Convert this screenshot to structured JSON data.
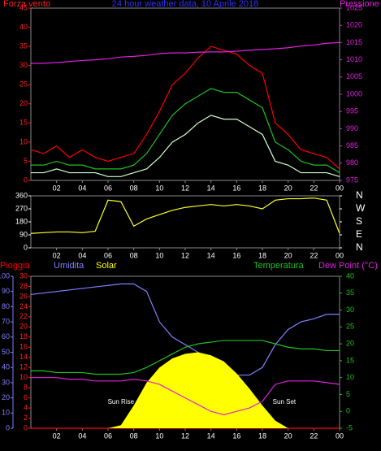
{
  "chart_data": [
    {
      "type": "line",
      "title": "24 hour weather data, 10 Aprile 2018",
      "ylabel": "Forza vento",
      "y2label": "Pressione",
      "xlim": [
        0,
        24
      ],
      "xticks": [
        {
          "value": 2,
          "label": "02"
        },
        {
          "value": 4,
          "label": "04"
        },
        {
          "value": 6,
          "label": "06"
        },
        {
          "value": 8,
          "label": "08"
        },
        10,
        12,
        14,
        16,
        18,
        20,
        22,
        {
          "value": 24,
          "label": "00"
        }
      ],
      "ylim": [
        0,
        45
      ],
      "yticks": [
        0,
        5,
        10,
        15,
        20,
        25,
        30,
        35,
        40,
        45
      ],
      "ycolor": "#ff2020",
      "y2lim": [
        975,
        1025
      ],
      "y2ticks": [
        975,
        980,
        985,
        990,
        995,
        1000,
        1005,
        1010,
        1015,
        1020,
        1025
      ],
      "y2color": "#e020e0",
      "x": [
        0,
        1,
        2,
        3,
        4,
        5,
        6,
        7,
        8,
        9,
        10,
        11,
        12,
        13,
        14,
        15,
        16,
        17,
        18,
        19,
        20,
        21,
        22,
        23,
        24
      ],
      "series": [
        {
          "color": "#ff0000",
          "values": [
            8,
            7,
            9,
            6,
            8,
            6,
            5,
            6,
            7,
            12,
            18,
            25,
            28,
            32,
            35,
            34,
            33,
            30,
            28,
            15,
            12,
            8,
            7,
            6,
            3
          ]
        },
        {
          "color": "#20c020",
          "values": [
            4,
            4,
            5,
            4,
            4,
            3,
            3,
            3,
            4,
            7,
            12,
            17,
            20,
            22,
            24,
            23,
            23,
            21,
            19,
            10,
            8,
            5,
            4,
            4,
            2
          ]
        },
        {
          "color": "#d0ffd0",
          "values": [
            2,
            2,
            3,
            2,
            2,
            2,
            1,
            1,
            2,
            3,
            6,
            10,
            12,
            15,
            17,
            16,
            16,
            14,
            12,
            5,
            4,
            2,
            2,
            2,
            1
          ]
        },
        {
          "color": "#e020e0",
          "axis": "y2",
          "values": [
            1009,
            1009,
            1009.2,
            1009.5,
            1009.8,
            1010,
            1010.3,
            1010.8,
            1011,
            1011.3,
            1011.8,
            1012,
            1012,
            1012.2,
            1012.3,
            1012.3,
            1012.5,
            1012.8,
            1013,
            1013.2,
            1013.5,
            1014,
            1014.3,
            1014.8,
            1015
          ]
        }
      ]
    },
    {
      "type": "line",
      "xlim": [
        0,
        24
      ],
      "xticks": [
        {
          "value": 2,
          "label": "02"
        },
        {
          "value": 4,
          "label": "04"
        },
        {
          "value": 6,
          "label": "06"
        },
        {
          "value": 8,
          "label": "08"
        },
        10,
        12,
        14,
        16,
        18,
        20,
        22,
        {
          "value": 24,
          "label": "00"
        }
      ],
      "ylim": [
        0,
        360
      ],
      "yticks": [
        0,
        90,
        180,
        270,
        360
      ],
      "ycolor": "#ffffff",
      "y2lim": [
        0,
        360
      ],
      "y2ticks": [
        {
          "value": 0,
          "label": "N"
        },
        {
          "value": 90,
          "label": "E"
        },
        {
          "value": 180,
          "label": "S"
        },
        {
          "value": 270,
          "label": "W"
        },
        {
          "value": 360,
          "label": "N"
        }
      ],
      "y2color": "#ffffff",
      "x": [
        0,
        1,
        2,
        3,
        4,
        5,
        6,
        7,
        8,
        9,
        10,
        11,
        12,
        13,
        14,
        15,
        16,
        17,
        18,
        19,
        20,
        21,
        22,
        23,
        24
      ],
      "series": [
        {
          "color": "#ffff20",
          "values": [
            100,
            105,
            110,
            110,
            105,
            115,
            330,
            320,
            150,
            200,
            230,
            260,
            280,
            290,
            300,
            290,
            300,
            290,
            270,
            330,
            340,
            340,
            345,
            330,
            100
          ]
        }
      ]
    },
    {
      "type": "line",
      "xlim": [
        0,
        24
      ],
      "xticks": [
        {
          "value": 2,
          "label": "02"
        },
        {
          "value": 4,
          "label": "04"
        },
        {
          "value": 6,
          "label": "06"
        },
        {
          "value": 8,
          "label": "08"
        },
        10,
        12,
        14,
        16,
        18,
        20,
        22,
        {
          "value": 24,
          "label": "00"
        }
      ],
      "ylim": [
        0,
        100
      ],
      "yticks": [
        0,
        10,
        20,
        30,
        40,
        50,
        60,
        70,
        80,
        90,
        100
      ],
      "ycolor": "#8080ff",
      "y3lim": [
        0,
        30
      ],
      "y3ticks": [
        0,
        2,
        4,
        6,
        8,
        10,
        12,
        14,
        16,
        18,
        20,
        22,
        24,
        26,
        28,
        30
      ],
      "y3color": "#ff2020",
      "y2lim": [
        -5,
        40
      ],
      "y2ticks": [
        -5,
        0,
        5,
        10,
        15,
        20,
        25,
        30,
        35,
        40
      ],
      "y2color": "#20c020",
      "annotations": [
        {
          "text": "Sun Rise",
          "x": 7
        },
        {
          "text": "Sun Set",
          "x": 19.7
        }
      ],
      "x": [
        0,
        1,
        2,
        3,
        4,
        5,
        6,
        7,
        8,
        9,
        10,
        11,
        12,
        13,
        14,
        15,
        16,
        17,
        18,
        19,
        20,
        21,
        22,
        23,
        24
      ],
      "series": [
        {
          "name": "Pioggia",
          "color": "#ff0000",
          "axis": "y3",
          "values": [
            0,
            0,
            0,
            0,
            0,
            0,
            0,
            0,
            0,
            0,
            0,
            0,
            0,
            0,
            0,
            0,
            0,
            0,
            0,
            0,
            0,
            0,
            0,
            0,
            0
          ]
        },
        {
          "name": "Umidita",
          "color": "#8080ff",
          "values": [
            88,
            89,
            90,
            91,
            92,
            93,
            94,
            95,
            95,
            90,
            70,
            60,
            55,
            50,
            45,
            40,
            35,
            35,
            40,
            55,
            65,
            70,
            72,
            75,
            75
          ]
        },
        {
          "name": "Solar",
          "color": "#ffff00",
          "fill": true,
          "values": [
            0,
            0,
            0,
            0,
            0,
            0,
            0,
            2,
            15,
            30,
            40,
            46,
            49,
            50,
            48,
            44,
            36,
            26,
            15,
            5,
            0,
            0,
            0,
            0,
            0
          ]
        },
        {
          "name": "Temperatura",
          "color": "#20c020",
          "axis": "y2",
          "values": [
            12,
            12,
            11.5,
            11.5,
            11.5,
            11,
            11,
            11,
            11.5,
            13,
            15,
            17,
            19,
            20,
            20.5,
            21,
            21,
            21,
            21,
            20,
            19,
            18.5,
            18.5,
            18,
            18
          ]
        },
        {
          "name": "Dew Point (°C)",
          "color": "#e020e0",
          "axis": "y2",
          "values": [
            10,
            10,
            10,
            9.5,
            9.5,
            9,
            9,
            9,
            9.5,
            9,
            8,
            6,
            4,
            2,
            0,
            -1,
            0,
            1,
            3,
            8,
            9,
            9,
            9,
            8.5,
            8
          ]
        }
      ]
    }
  ]
}
